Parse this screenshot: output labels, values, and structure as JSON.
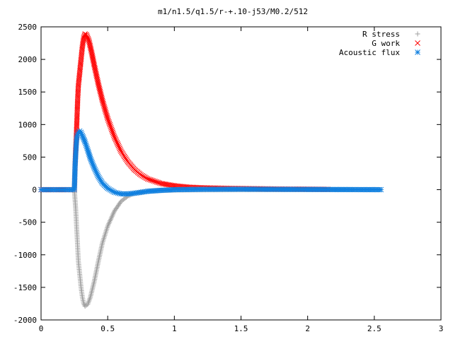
{
  "chart_data": {
    "type": "scatter",
    "title": "m1/n1.5/q1.5/r-+.10-j53/M0.2/512",
    "xlabel": "",
    "ylabel": "",
    "xlim": [
      0,
      3
    ],
    "ylim": [
      -2000,
      2500
    ],
    "x_ticks": [
      0,
      0.5,
      1,
      1.5,
      2,
      2.5,
      3
    ],
    "x_tick_labels": [
      "0",
      "0.5",
      "1",
      "1.5",
      "2",
      "2.5",
      "3"
    ],
    "y_ticks": [
      2500,
      2000,
      1500,
      1000,
      500,
      0,
      -500,
      -1000,
      -1500,
      -2000
    ],
    "y_tick_labels": [
      "2500",
      "2000",
      "1500",
      "1000",
      "500",
      "0",
      "-500",
      "-1000",
      "-1500",
      "-2000"
    ],
    "grid": false,
    "legend_position": "top-right",
    "series": [
      {
        "name": "R stress",
        "marker": "plus",
        "color": "#a0a0a0",
        "points": [
          [
            0.0,
            0
          ],
          [
            0.05,
            0
          ],
          [
            0.1,
            0
          ],
          [
            0.15,
            0
          ],
          [
            0.2,
            0
          ],
          [
            0.25,
            0
          ],
          [
            0.26,
            -300
          ],
          [
            0.265,
            -500
          ],
          [
            0.27,
            -700
          ],
          [
            0.275,
            -900
          ],
          [
            0.28,
            -1100
          ],
          [
            0.29,
            -1300
          ],
          [
            0.3,
            -1500
          ],
          [
            0.31,
            -1650
          ],
          [
            0.32,
            -1750
          ],
          [
            0.33,
            -1790
          ],
          [
            0.35,
            -1760
          ],
          [
            0.37,
            -1650
          ],
          [
            0.4,
            -1400
          ],
          [
            0.43,
            -1100
          ],
          [
            0.46,
            -820
          ],
          [
            0.5,
            -560
          ],
          [
            0.55,
            -330
          ],
          [
            0.6,
            -180
          ],
          [
            0.65,
            -100
          ],
          [
            0.7,
            -55
          ],
          [
            0.8,
            -25
          ],
          [
            0.9,
            -12
          ],
          [
            1.0,
            -6
          ],
          [
            1.2,
            -3
          ],
          [
            1.5,
            -1
          ],
          [
            2.0,
            0
          ],
          [
            2.55,
            0
          ]
        ]
      },
      {
        "name": "G work",
        "marker": "cross",
        "color": "#ff0000",
        "points": [
          [
            0.0,
            0
          ],
          [
            0.1,
            0
          ],
          [
            0.2,
            0
          ],
          [
            0.25,
            0
          ],
          [
            0.255,
            350
          ],
          [
            0.26,
            620
          ],
          [
            0.265,
            850
          ],
          [
            0.27,
            1130
          ],
          [
            0.275,
            1400
          ],
          [
            0.28,
            1600
          ],
          [
            0.29,
            1800
          ],
          [
            0.3,
            2000
          ],
          [
            0.31,
            2200
          ],
          [
            0.32,
            2330
          ],
          [
            0.33,
            2390
          ],
          [
            0.34,
            2380
          ],
          [
            0.36,
            2280
          ],
          [
            0.38,
            2100
          ],
          [
            0.4,
            1900
          ],
          [
            0.43,
            1620
          ],
          [
            0.46,
            1370
          ],
          [
            0.5,
            1090
          ],
          [
            0.55,
            810
          ],
          [
            0.6,
            590
          ],
          [
            0.65,
            430
          ],
          [
            0.7,
            310
          ],
          [
            0.75,
            225
          ],
          [
            0.8,
            165
          ],
          [
            0.9,
            95
          ],
          [
            1.0,
            60
          ],
          [
            1.1,
            40
          ],
          [
            1.2,
            30
          ],
          [
            1.4,
            20
          ],
          [
            1.6,
            15
          ],
          [
            1.8,
            10
          ],
          [
            2.0,
            8
          ],
          [
            2.15,
            5
          ]
        ]
      },
      {
        "name": "Acoustic flux",
        "marker": "star",
        "color": "#1080e0",
        "points": [
          [
            0.0,
            0
          ],
          [
            0.05,
            0
          ],
          [
            0.1,
            0
          ],
          [
            0.15,
            0
          ],
          [
            0.2,
            0
          ],
          [
            0.25,
            0
          ],
          [
            0.255,
            350
          ],
          [
            0.26,
            560
          ],
          [
            0.265,
            730
          ],
          [
            0.27,
            830
          ],
          [
            0.28,
            880
          ],
          [
            0.29,
            900
          ],
          [
            0.3,
            880
          ],
          [
            0.31,
            830
          ],
          [
            0.33,
            730
          ],
          [
            0.35,
            610
          ],
          [
            0.37,
            480
          ],
          [
            0.4,
            330
          ],
          [
            0.43,
            200
          ],
          [
            0.46,
            100
          ],
          [
            0.5,
            20
          ],
          [
            0.55,
            -40
          ],
          [
            0.6,
            -65
          ],
          [
            0.65,
            -65
          ],
          [
            0.7,
            -55
          ],
          [
            0.75,
            -40
          ],
          [
            0.8,
            -25
          ],
          [
            0.9,
            -10
          ],
          [
            1.0,
            0
          ],
          [
            1.2,
            5
          ],
          [
            1.5,
            8
          ],
          [
            1.8,
            5
          ],
          [
            2.1,
            3
          ],
          [
            2.4,
            1
          ],
          [
            2.55,
            0
          ]
        ]
      }
    ]
  }
}
